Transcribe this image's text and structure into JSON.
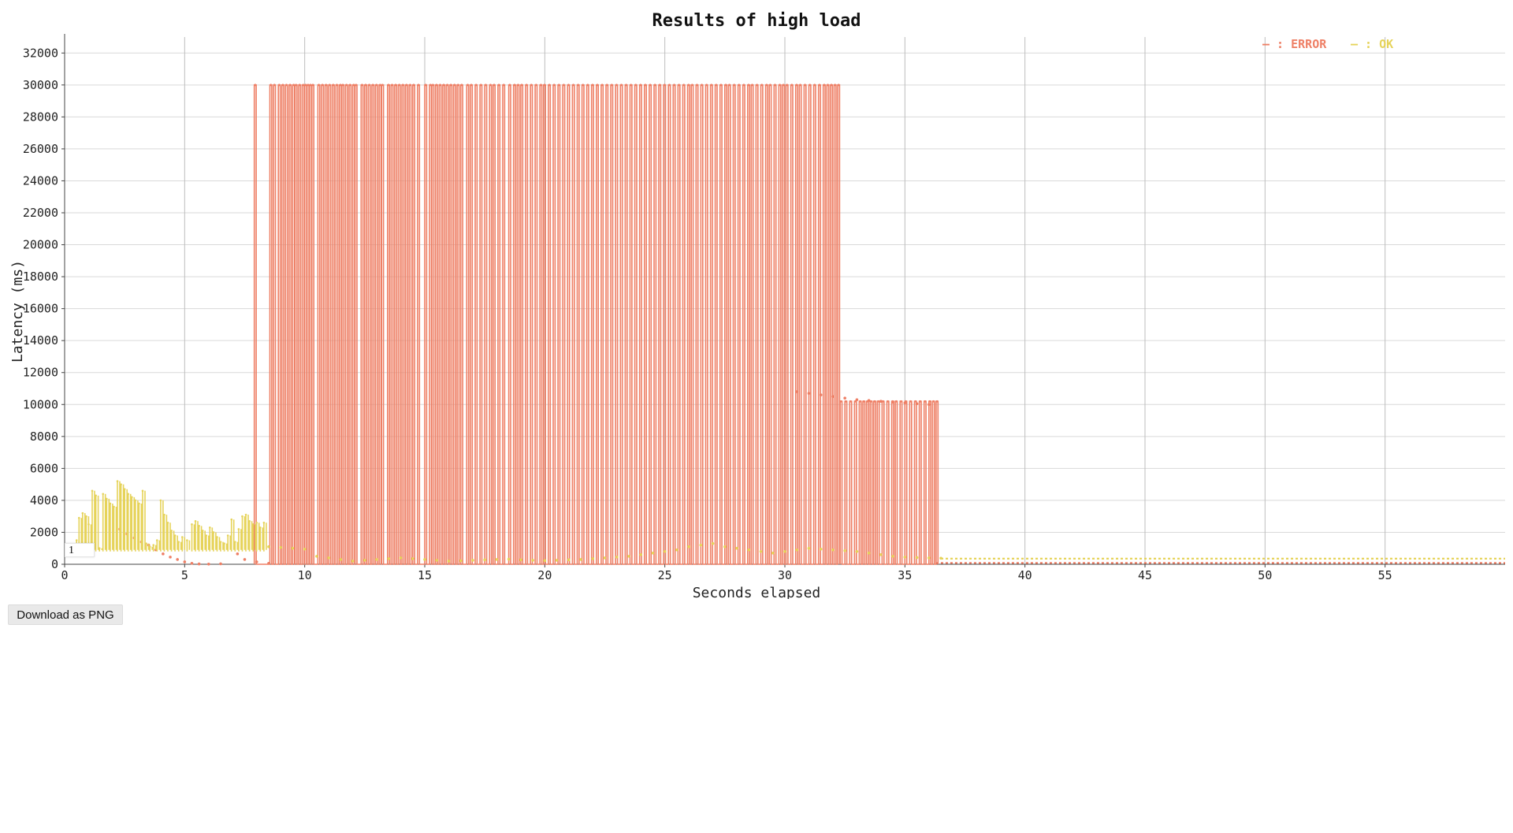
{
  "page": {
    "download_label": "Download as PNG",
    "badge_text": "1"
  },
  "colors": {
    "error": "#ee7f65",
    "ok": "#e6d35a",
    "grid": "#d9d9d9"
  },
  "chart_data": {
    "type": "line",
    "title": "Results of high load",
    "xlabel": "Seconds elapsed",
    "ylabel": "Latency (ms)",
    "xlim": [
      0,
      60
    ],
    "ylim": [
      0,
      33000
    ],
    "x_ticks": [
      0,
      5,
      10,
      15,
      20,
      25,
      30,
      35,
      40,
      45,
      50,
      55
    ],
    "y_ticks": [
      0,
      2000,
      4000,
      6000,
      8000,
      10000,
      12000,
      14000,
      16000,
      18000,
      20000,
      22000,
      24000,
      26000,
      28000,
      30000,
      32000
    ],
    "grid": true,
    "legend_position": "top-right",
    "legend": [
      {
        "key": "error",
        "label": "— : ERROR"
      },
      {
        "key": "ok",
        "label": "— : OK"
      }
    ],
    "series": [
      {
        "name": "ERROR",
        "color_key": "error",
        "segments": [
          {
            "mode": "spikes",
            "x_start": 7.9,
            "x_end": 32.2,
            "peak": 30000,
            "spike_x": [
              7.9,
              8.55,
              8.7,
              8.9,
              9.05,
              9.2,
              9.35,
              9.5,
              9.6,
              9.75,
              9.9,
              10.0,
              10.1,
              10.2,
              10.3,
              10.55,
              10.7,
              10.85,
              11.0,
              11.15,
              11.3,
              11.45,
              11.55,
              11.7,
              11.85,
              12.0,
              12.1,
              12.35,
              12.5,
              12.65,
              12.8,
              12.95,
              13.1,
              13.2,
              13.45,
              13.6,
              13.75,
              13.9,
              14.05,
              14.2,
              14.35,
              14.5,
              14.7,
              15.0,
              15.2,
              15.3,
              15.45,
              15.6,
              15.75,
              15.9,
              16.05,
              16.2,
              16.35,
              16.5,
              16.75,
              16.9,
              17.1,
              17.3,
              17.5,
              17.7,
              17.85,
              18.05,
              18.25,
              18.5,
              18.7,
              18.85,
              19.0,
              19.2,
              19.4,
              19.6,
              19.8,
              19.95,
              20.15,
              20.35,
              20.55,
              20.75,
              20.95,
              21.15,
              21.35,
              21.55,
              21.75,
              21.95,
              22.15,
              22.35,
              22.55,
              22.75,
              22.95,
              23.15,
              23.35,
              23.55,
              23.75,
              23.95,
              24.15,
              24.35,
              24.55,
              24.75,
              24.95,
              25.15,
              25.35,
              25.55,
              25.75,
              25.95,
              26.1,
              26.3,
              26.5,
              26.7,
              26.9,
              27.1,
              27.3,
              27.5,
              27.65,
              27.85,
              28.05,
              28.25,
              28.45,
              28.6,
              28.8,
              29.0,
              29.2,
              29.35,
              29.55,
              29.75,
              29.9,
              30.05,
              30.25,
              30.45,
              30.6,
              30.8,
              31.0,
              31.2,
              31.4,
              31.6,
              31.75,
              31.9,
              32.05,
              32.2
            ]
          },
          {
            "mode": "spikes",
            "x_start": 32.3,
            "x_end": 36.3,
            "peak": 10200,
            "spike_x": [
              32.3,
              32.5,
              32.7,
              32.9,
              33.1,
              33.25,
              33.4,
              33.55,
              33.7,
              33.85,
              34.05,
              34.25,
              34.45,
              34.6,
              34.8,
              35.0,
              35.2,
              35.4,
              35.6,
              35.8,
              36.0,
              36.15,
              36.3
            ]
          },
          {
            "mode": "dots",
            "points": [
              [
                2.3,
                2200
              ],
              [
                2.6,
                1900
              ],
              [
                2.9,
                1650
              ],
              [
                3.2,
                1400
              ],
              [
                3.5,
                1200
              ],
              [
                3.8,
                900
              ],
              [
                4.1,
                650
              ],
              [
                4.4,
                450
              ],
              [
                4.7,
                300
              ],
              [
                5.0,
                150
              ],
              [
                5.3,
                60
              ],
              [
                5.6,
                20
              ],
              [
                6.0,
                10
              ],
              [
                6.5,
                30
              ],
              [
                7.2,
                650
              ],
              [
                7.5,
                300
              ],
              [
                8.0,
                150
              ],
              [
                8.5,
                60
              ],
              [
                30.5,
                10800
              ],
              [
                31.0,
                10700
              ],
              [
                31.5,
                10600
              ],
              [
                32.0,
                10500
              ],
              [
                32.5,
                10400
              ],
              [
                33.0,
                10300
              ],
              [
                33.5,
                10250
              ],
              [
                34.0,
                10200
              ],
              [
                34.5,
                10150
              ],
              [
                35.0,
                10100
              ],
              [
                35.5,
                10050
              ],
              [
                36.0,
                10000
              ]
            ]
          },
          {
            "mode": "baseline",
            "x_start": 36.3,
            "x_end": 60,
            "value": 80
          }
        ]
      },
      {
        "name": "OK",
        "color_key": "ok",
        "segments": [
          {
            "mode": "bursts",
            "points": [
              [
                0.5,
                1500
              ],
              [
                0.6,
                2900
              ],
              [
                0.75,
                3200
              ],
              [
                0.9,
                3000
              ],
              [
                1.0,
                2500
              ],
              [
                1.15,
                4600
              ],
              [
                1.3,
                4300
              ],
              [
                1.45,
                1000
              ],
              [
                1.6,
                4400
              ],
              [
                1.75,
                4100
              ],
              [
                1.9,
                3800
              ],
              [
                2.05,
                3600
              ],
              [
                2.2,
                5200
              ],
              [
                2.35,
                5000
              ],
              [
                2.5,
                4700
              ],
              [
                2.65,
                4400
              ],
              [
                2.8,
                4200
              ],
              [
                2.95,
                4000
              ],
              [
                3.1,
                3800
              ],
              [
                3.25,
                4600
              ],
              [
                3.4,
                1300
              ],
              [
                3.55,
                1100
              ],
              [
                3.7,
                1200
              ],
              [
                3.85,
                1500
              ],
              [
                4.0,
                4000
              ],
              [
                4.15,
                3100
              ],
              [
                4.3,
                2600
              ],
              [
                4.45,
                2100
              ],
              [
                4.6,
                1800
              ],
              [
                4.75,
                1400
              ],
              [
                4.9,
                1700
              ],
              [
                5.1,
                1500
              ],
              [
                5.3,
                2500
              ],
              [
                5.45,
                2700
              ],
              [
                5.6,
                2400
              ],
              [
                5.75,
                2100
              ],
              [
                5.9,
                1800
              ],
              [
                6.05,
                2300
              ],
              [
                6.2,
                2000
              ],
              [
                6.35,
                1700
              ],
              [
                6.5,
                1400
              ],
              [
                6.65,
                1300
              ],
              [
                6.8,
                1800
              ],
              [
                6.95,
                2800
              ],
              [
                7.1,
                1400
              ],
              [
                7.25,
                2200
              ],
              [
                7.4,
                3000
              ],
              [
                7.55,
                3100
              ],
              [
                7.7,
                2700
              ],
              [
                7.85,
                2500
              ],
              [
                8.0,
                2600
              ],
              [
                8.15,
                2300
              ],
              [
                8.3,
                2600
              ]
            ]
          },
          {
            "mode": "dots",
            "points": [
              [
                8.5,
                1100
              ],
              [
                9.0,
                1050
              ],
              [
                9.5,
                1000
              ],
              [
                10.0,
                950
              ],
              [
                10.5,
                500
              ],
              [
                11.0,
                400
              ],
              [
                11.5,
                300
              ],
              [
                12.0,
                200
              ],
              [
                12.5,
                250
              ],
              [
                13.0,
                300
              ],
              [
                13.5,
                350
              ],
              [
                14.0,
                400
              ],
              [
                14.5,
                350
              ],
              [
                15.0,
                300
              ],
              [
                15.5,
                250
              ],
              [
                16.0,
                200
              ],
              [
                16.5,
                220
              ],
              [
                17.0,
                250
              ],
              [
                17.5,
                280
              ],
              [
                18.0,
                300
              ],
              [
                18.5,
                320
              ],
              [
                19.0,
                280
              ],
              [
                19.5,
                250
              ],
              [
                20.0,
                230
              ],
              [
                20.5,
                250
              ],
              [
                21.0,
                280
              ],
              [
                21.5,
                300
              ],
              [
                22.0,
                350
              ],
              [
                22.5,
                400
              ],
              [
                23.0,
                450
              ],
              [
                23.5,
                500
              ],
              [
                24.0,
                600
              ],
              [
                24.5,
                700
              ],
              [
                25.0,
                800
              ],
              [
                25.5,
                900
              ],
              [
                26.0,
                1100
              ],
              [
                26.5,
                1200
              ],
              [
                27.0,
                1300
              ],
              [
                27.5,
                1100
              ],
              [
                28.0,
                1000
              ],
              [
                28.5,
                900
              ],
              [
                29.0,
                800
              ],
              [
                29.5,
                700
              ],
              [
                30.0,
                800
              ],
              [
                30.5,
                900
              ],
              [
                31.0,
                1000
              ],
              [
                31.5,
                950
              ],
              [
                32.0,
                900
              ],
              [
                32.5,
                850
              ],
              [
                33.0,
                800
              ],
              [
                33.5,
                700
              ],
              [
                34.0,
                600
              ],
              [
                34.5,
                500
              ],
              [
                35.0,
                450
              ],
              [
                35.5,
                420
              ],
              [
                36.0,
                400
              ],
              [
                36.5,
                380
              ]
            ]
          },
          {
            "mode": "baseline",
            "x_start": 36.5,
            "x_end": 60,
            "value": 350
          }
        ]
      }
    ]
  }
}
